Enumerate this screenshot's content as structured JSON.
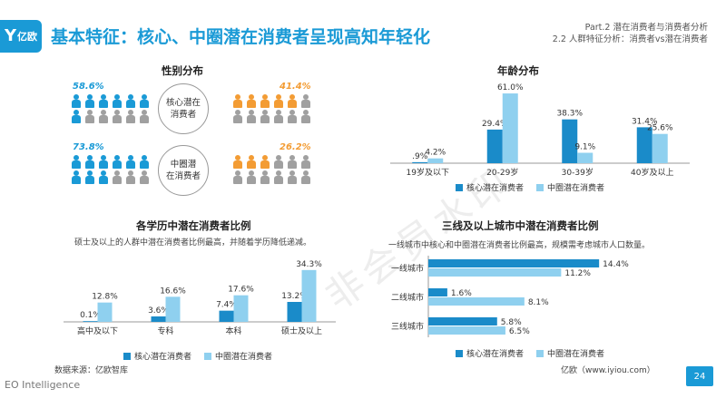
{
  "header": {
    "logo_text": "亿欧",
    "title": "基本特征：核心、中圈潜在消费者呈现高知年轻化",
    "part": "Part.2 潜在消费者与消费者分析",
    "subsection": "2.2 人群特征分析：消费者vs潜在消费者"
  },
  "gender": {
    "title": "性别分布",
    "core_label": "核心潜在消费者",
    "core_label_lines": [
      "核心潜在",
      "消费者"
    ],
    "middle_label_lines": [
      "中圈潜",
      "在消费者"
    ],
    "core_male": "58.6%",
    "core_female": "41.4%",
    "middle_male": "73.8%",
    "middle_female": "26.2%",
    "colors": {
      "male": "#1a9ad6",
      "female": "#f39c34",
      "inactive": "#a0a0a0"
    },
    "icon_counts": {
      "male_filled_core": 7,
      "female_filled_core": 5,
      "male_filled_middle": 9,
      "female_filled_middle": 3,
      "total": 12
    }
  },
  "legend": {
    "core": "核心潜在消费者",
    "middle": "中圈潜在消费者"
  },
  "colors": {
    "core": "#1a8bc9",
    "middle": "#8fd0ef"
  },
  "edu_text": {
    "title": "各学历中潜在消费者比例",
    "note": "硕士及以上的人群中潜在消费者比例最高，并随着学历降低递减。"
  },
  "city_text": {
    "title": "三线及以上城市中潜在消费者比例",
    "note": "一线城市中核心和中圈潜在消费者比例最高，规模需考虑城市人口数量。"
  },
  "chart_data": [
    {
      "type": "bar",
      "title": "年龄分布",
      "categories": [
        "19岁及以下",
        "20-29岁",
        "30-39岁",
        "40岁及以上"
      ],
      "series": [
        {
          "name": "核心潜在消费者",
          "values": [
            0.9,
            29.4,
            38.3,
            31.4
          ],
          "labels": [
            ".9%",
            "29.4%",
            "38.3%",
            "31.4%"
          ]
        },
        {
          "name": "中圈潜在消费者",
          "values": [
            4.2,
            61.0,
            9.1,
            25.6
          ],
          "labels": [
            "4.2%",
            "61.0%",
            "9.1%",
            "25.6%"
          ]
        }
      ],
      "ylim": [
        0,
        65
      ]
    },
    {
      "type": "bar",
      "title": "各学历中潜在消费者比例",
      "categories": [
        "高中及以下",
        "专科",
        "本科",
        "硕士及以上"
      ],
      "series": [
        {
          "name": "核心潜在消费者",
          "values": [
            0.1,
            3.6,
            7.4,
            13.2
          ],
          "labels": [
            "0.1%",
            "3.6%",
            "7.4%",
            "13.2%"
          ]
        },
        {
          "name": "中圈潜在消费者",
          "values": [
            12.8,
            16.6,
            17.6,
            34.3
          ],
          "labels": [
            "12.8%",
            "16.6%",
            "17.6%",
            "34.3%"
          ]
        }
      ],
      "ylim": [
        0,
        36
      ]
    },
    {
      "type": "bar",
      "orientation": "horizontal",
      "title": "三线及以上城市中潜在消费者比例",
      "categories": [
        "一线城市",
        "二线城市",
        "三线城市"
      ],
      "series": [
        {
          "name": "核心潜在消费者",
          "values": [
            14.4,
            1.6,
            5.8
          ],
          "labels": [
            "14.4%",
            "1.6%",
            "5.8%"
          ]
        },
        {
          "name": "中圈潜在消费者",
          "values": [
            11.2,
            8.1,
            6.5
          ],
          "labels": [
            "11.2%",
            "8.1%",
            "6.5%"
          ]
        }
      ],
      "xlim": [
        0,
        15
      ]
    }
  ],
  "footer": {
    "source": "数据来源：亿欧智库",
    "brand": "EO Intelligence",
    "site": "亿欧（www.iyiou.com）",
    "page": "24",
    "watermark": "非会员水印"
  }
}
